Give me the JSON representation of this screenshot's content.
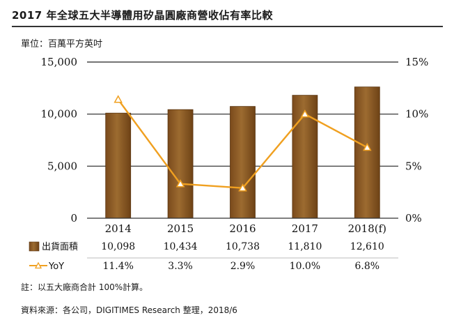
{
  "title": "2017 年全球五大半導體用矽晶圓廠商營收佔有率比較",
  "unit_label": "單位：百萬平方英吋",
  "note": "註：以五大廠商合計 100%計算。",
  "source": "資料來源：各公司，DIGITIMES Research 整理，2018/6",
  "chart_data": {
    "type": "bar",
    "categories": [
      "2014",
      "2015",
      "2016",
      "2017",
      "2018(f)"
    ],
    "series": [
      {
        "name": "出貨面積",
        "type": "bar",
        "axis": "left",
        "values": [
          10098,
          10434,
          10738,
          11810,
          12610
        ],
        "labels": [
          "10,098",
          "10,434",
          "10,738",
          "11,810",
          "12,610"
        ],
        "color": "#9c6b30"
      },
      {
        "name": "YoY",
        "type": "line",
        "axis": "right",
        "values": [
          11.4,
          3.3,
          2.9,
          10.0,
          6.8
        ],
        "labels": [
          "11.4%",
          "3.3%",
          "2.9%",
          "10.0%",
          "6.8%"
        ],
        "color": "#f0a020"
      }
    ],
    "y_left": {
      "min": 0,
      "max": 15000,
      "ticks": [
        0,
        5000,
        10000,
        15000
      ],
      "tick_labels": [
        "0",
        "5,000",
        "10,000",
        "15,000"
      ]
    },
    "y_right": {
      "min": 0,
      "max": 15,
      "ticks": [
        0,
        5,
        10,
        15
      ],
      "tick_labels": [
        "0%",
        "5%",
        "10%",
        "15%"
      ]
    },
    "grid": true,
    "legend": "data-table below chart"
  }
}
